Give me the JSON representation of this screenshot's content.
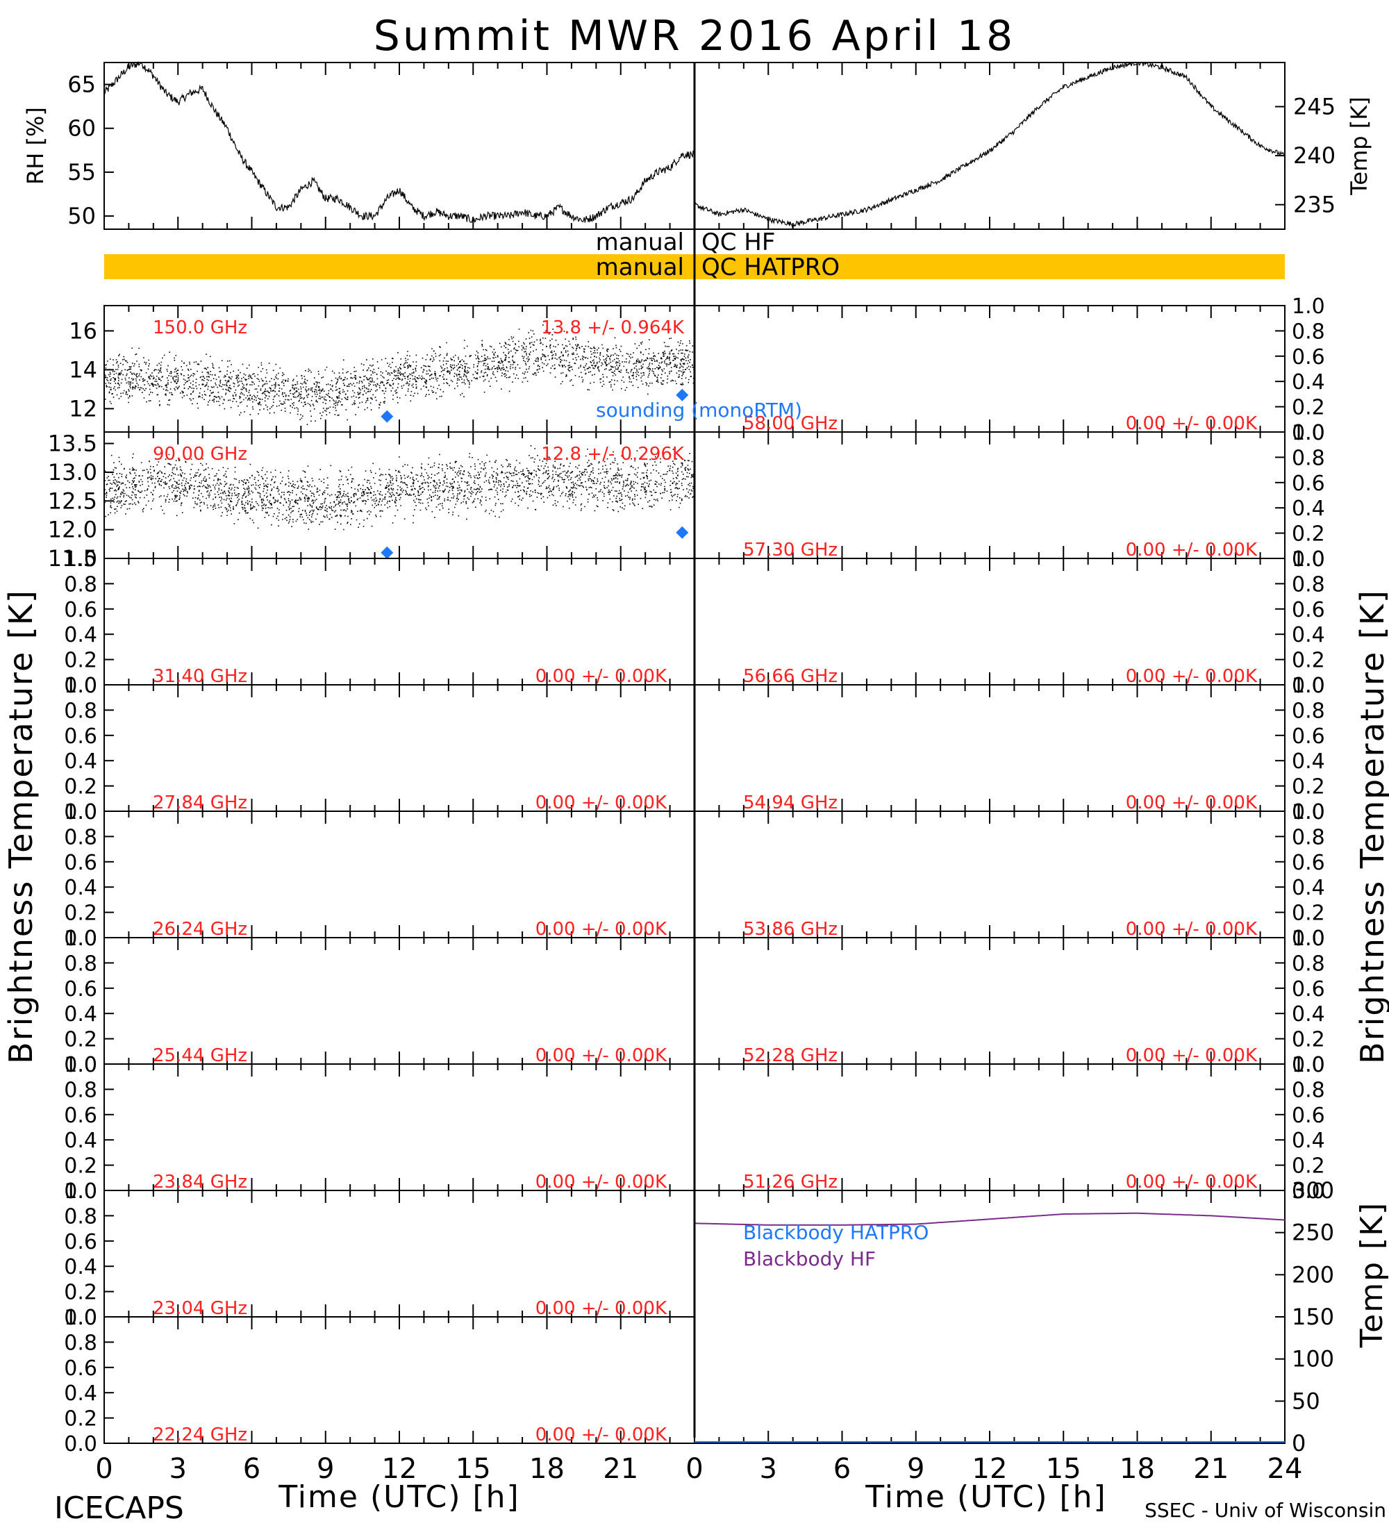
{
  "title": "Summit MWR 2016 April 18",
  "footer": {
    "left": "ICECAPS",
    "right": "SSEC - Univ of Wisconsin"
  },
  "axis_labels": {
    "time": "Time (UTC) [h]",
    "brightness": "Brightness Temperature [K]",
    "rh": "RH [%]",
    "temp_k": "Temp [K]"
  },
  "time_ticks": [
    "0",
    "3",
    "6",
    "9",
    "12",
    "15",
    "18",
    "21",
    "24"
  ],
  "qc_bars": {
    "hf_prefix": "manual",
    "hf_label": "QC HF",
    "hatpro_prefix": "manual",
    "hatpro_label": "QC HATPRO",
    "hatpro_color": "#ffc400"
  },
  "legends": {
    "sounding": "sounding (monoRTM)",
    "bb_hatpro": "Blackbody HATPRO",
    "bb_hf": "Blackbody HF"
  },
  "colors": {
    "data_label": "#ff2020",
    "sounding": "#1e78ff",
    "bb_hatpro": "#1e78ff",
    "bb_hf": "#7a2a8a",
    "qc_hatpro": "#ffc400"
  },
  "chart_data": [
    {
      "type": "line",
      "name": "rh",
      "ylabel": "RH [%]",
      "ylim": [
        48.5,
        67.5
      ],
      "yticks": [
        50,
        55,
        60,
        65
      ],
      "x": [
        0,
        0.5,
        1,
        1.5,
        2,
        2.5,
        3,
        3.5,
        4,
        4.5,
        5,
        5.5,
        6,
        6.5,
        7,
        7.5,
        8,
        8.5,
        9,
        9.5,
        10,
        10.5,
        11,
        11.5,
        12,
        12.5,
        13,
        13.5,
        14,
        14.5,
        15,
        15.5,
        16,
        16.5,
        17,
        17.5,
        18,
        18.5,
        19,
        19.5,
        20,
        20.5,
        21,
        21.5,
        22,
        22.5,
        23,
        23.5,
        24
      ],
      "y": [
        64,
        65.5,
        67,
        67.5,
        66,
        64,
        63,
        64,
        64.5,
        62,
        60,
        57,
        55,
        53,
        51,
        51,
        53,
        54,
        52,
        52,
        51,
        50,
        50,
        52,
        53,
        51,
        50,
        50.5,
        50,
        50,
        49.5,
        50,
        50,
        50,
        50.5,
        50,
        50,
        51,
        50,
        49.5,
        50,
        51,
        51.5,
        52,
        54,
        55,
        55.5,
        57,
        57
      ]
    },
    {
      "type": "line",
      "name": "temp",
      "ylabel": "Temp [K]",
      "ylim": [
        232.5,
        249.5
      ],
      "yticks": [
        235,
        240,
        245
      ],
      "x": [
        0,
        1,
        2,
        3,
        4,
        5,
        6,
        7,
        8,
        9,
        10,
        11,
        12,
        13,
        14,
        15,
        16,
        17,
        18,
        19,
        20,
        21,
        22,
        23,
        24
      ],
      "y": [
        235,
        234,
        234.5,
        233.5,
        233,
        233.5,
        234,
        234.5,
        235.5,
        236.5,
        237.5,
        239,
        240.5,
        242.5,
        245,
        247,
        248,
        249,
        249.5,
        249,
        248,
        245,
        243,
        241,
        240
      ]
    },
    {
      "type": "scatter",
      "name": "brightness-150.0",
      "channel_label": "150.0 GHz",
      "stat_label": "13.8 +/- 0.964K",
      "ylim": [
        10.8,
        17.3
      ],
      "yticks": [
        "12",
        "14",
        "16"
      ],
      "y_tick_values": [
        12,
        14,
        16
      ],
      "trend_x": [
        0,
        3,
        6,
        9,
        12,
        15,
        18,
        21,
        24
      ],
      "trend_y": [
        13.6,
        13.5,
        13.0,
        12.8,
        13.6,
        14.2,
        14.8,
        14.2,
        14.4
      ],
      "noise": 0.9,
      "sounding_x": [
        11.5,
        23.5
      ],
      "sounding_y": [
        11.6,
        12.7
      ]
    },
    {
      "type": "scatter",
      "name": "brightness-90.00",
      "channel_label": "90.00 GHz",
      "stat_label": "12.8 +/- 0.296K",
      "ylim": [
        11.5,
        13.7
      ],
      "yticks": [
        "11.5",
        "12.0",
        "12.5",
        "13.0",
        "13.5"
      ],
      "y_tick_values": [
        11.5,
        12.0,
        12.5,
        13.0,
        13.5
      ],
      "trend_x": [
        0,
        3,
        6,
        9,
        12,
        15,
        18,
        21,
        24
      ],
      "trend_y": [
        12.7,
        12.8,
        12.6,
        12.5,
        12.7,
        12.8,
        12.9,
        12.8,
        12.9
      ],
      "noise": 0.35,
      "sounding_x": [
        11.5,
        23.5
      ],
      "sounding_y": [
        11.6,
        11.95
      ]
    }
  ],
  "empty_panels": {
    "left": [
      {
        "channel": "31.40 GHz",
        "stat": "0.00 +/- 0.00K"
      },
      {
        "channel": "27.84 GHz",
        "stat": "0.00 +/- 0.00K"
      },
      {
        "channel": "26.24 GHz",
        "stat": "0.00 +/- 0.00K"
      },
      {
        "channel": "25.44 GHz",
        "stat": "0.00 +/- 0.00K"
      },
      {
        "channel": "23.84 GHz",
        "stat": "0.00 +/- 0.00K"
      },
      {
        "channel": "23.04 GHz",
        "stat": "0.00 +/- 0.00K"
      },
      {
        "channel": "22.24 GHz",
        "stat": "0.00 +/- 0.00K"
      }
    ],
    "right": [
      {
        "channel": "58.00 GHz",
        "stat": "0.00 +/- 0.00K"
      },
      {
        "channel": "57.30 GHz",
        "stat": "0.00 +/- 0.00K"
      },
      {
        "channel": "56.66 GHz",
        "stat": "0.00 +/- 0.00K"
      },
      {
        "channel": "54.94 GHz",
        "stat": "0.00 +/- 0.00K"
      },
      {
        "channel": "53.86 GHz",
        "stat": "0.00 +/- 0.00K"
      },
      {
        "channel": "52.28 GHz",
        "stat": "0.00 +/- 0.00K"
      },
      {
        "channel": "51.26 GHz",
        "stat": "0.00 +/- 0.00K"
      }
    ],
    "yticks": [
      "0.0",
      "0.2",
      "0.4",
      "0.6",
      "0.8",
      "1.0"
    ]
  },
  "blackbody": {
    "ylim": [
      0,
      300
    ],
    "yticks": [
      "0",
      "50",
      "100",
      "150",
      "200",
      "250",
      "300"
    ],
    "y_tick_values": [
      0,
      50,
      100,
      150,
      200,
      250,
      300
    ],
    "hf_x": [
      0,
      3,
      6,
      9,
      12,
      15,
      18,
      21,
      24
    ],
    "hf_y": [
      261,
      259,
      259,
      260,
      266,
      272,
      273,
      270,
      265
    ]
  }
}
